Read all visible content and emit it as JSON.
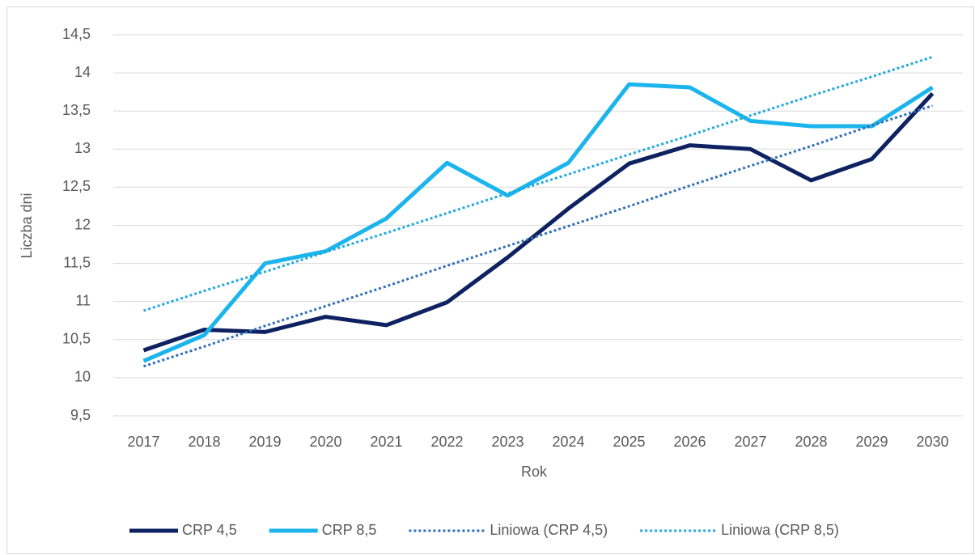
{
  "chart_data": {
    "type": "line",
    "x_label": "Rok",
    "y_label": "Liczba dni",
    "categories": [
      "2017",
      "2018",
      "2019",
      "2020",
      "2021",
      "2022",
      "2023",
      "2024",
      "2025",
      "2026",
      "2027",
      "2028",
      "2029",
      "2030"
    ],
    "series": [
      {
        "name": "CRP 4,5",
        "color": "#0e2160",
        "style": "solid",
        "values": [
          10.36,
          10.63,
          10.6,
          10.8,
          10.69,
          10.99,
          11.58,
          12.22,
          12.81,
          13.05,
          13.0,
          12.59,
          12.87,
          13.73
        ]
      },
      {
        "name": "CRP 8,5",
        "color": "#1cb4ec",
        "style": "solid",
        "values": [
          10.22,
          10.56,
          11.5,
          11.66,
          12.09,
          12.82,
          12.39,
          12.82,
          13.85,
          13.81,
          13.37,
          13.3,
          13.3,
          13.81
        ]
      },
      {
        "name": "Liniowa (CRP 4,5)",
        "color": "#2f6fb8",
        "style": "dotted",
        "values": [
          10.15,
          10.41,
          10.68,
          10.94,
          11.2,
          11.47,
          11.73,
          11.99,
          12.25,
          12.52,
          12.78,
          13.04,
          13.31,
          13.57
        ]
      },
      {
        "name": "Liniowa (CRP 8,5)",
        "color": "#1fa8dc",
        "style": "dotted",
        "values": [
          10.88,
          11.14,
          11.39,
          11.65,
          11.9,
          12.16,
          12.42,
          12.67,
          12.93,
          13.18,
          13.44,
          13.7,
          13.95,
          14.21
        ]
      }
    ],
    "ylim": [
      9.5,
      14.5
    ],
    "yticks": [
      {
        "value": 9.5,
        "label": "9,5"
      },
      10,
      {
        "value": 10.5,
        "label": "10,5"
      },
      11,
      {
        "value": 11.5,
        "label": "11,5"
      },
      12,
      {
        "value": 12.5,
        "label": "12,5"
      },
      13,
      {
        "value": 13.5,
        "label": "13,5"
      },
      14,
      {
        "value": 14.5,
        "label": "14,5"
      }
    ],
    "grid": true,
    "legend": "bottom"
  }
}
